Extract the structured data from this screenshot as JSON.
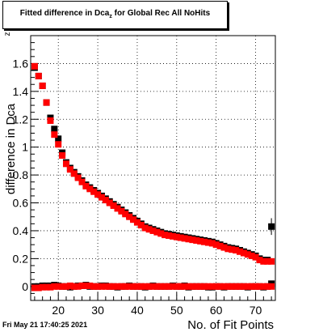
{
  "title": {
    "prefix": "Fitted difference in Dca",
    "subscript": "z",
    "suffix": " for Global Rec All NoHits"
  },
  "timestamp": "Fri May 21 17:40:25 2021",
  "chart_data": {
    "type": "scatter",
    "xlabel": "No. of Fit Points",
    "ylabel": "difference in Dca",
    "ylabel_subscript": "z",
    "xlim": [
      13,
      75
    ],
    "ylim": [
      -0.1,
      1.8
    ],
    "xticks": [
      20,
      30,
      40,
      50,
      60,
      70
    ],
    "yticks": [
      0,
      0.2,
      0.4,
      0.6,
      0.8,
      1,
      1.2,
      1.4,
      1.6
    ],
    "ytick_labels": [
      "0",
      "0.2",
      "0.4",
      "0.6",
      "0.8",
      "1",
      "1.2",
      "1.4",
      "1.6"
    ],
    "grid": true,
    "colors": {
      "black": "#000000",
      "red": "#ff0000"
    },
    "x": [
      14,
      15,
      16,
      17,
      18,
      19,
      20,
      21,
      22,
      23,
      24,
      25,
      26,
      27,
      28,
      29,
      30,
      31,
      32,
      33,
      34,
      35,
      36,
      37,
      38,
      39,
      40,
      41,
      42,
      43,
      44,
      45,
      46,
      47,
      48,
      49,
      50,
      51,
      52,
      53,
      54,
      55,
      56,
      57,
      58,
      59,
      60,
      61,
      62,
      63,
      64,
      65,
      66,
      67,
      68,
      69,
      70,
      71,
      72,
      73,
      74
    ],
    "series": [
      {
        "color": "black",
        "values": [
          1.57,
          1.51,
          1.44,
          1.32,
          1.21,
          1.13,
          1.06,
          0.96,
          0.89,
          0.85,
          0.82,
          0.79,
          0.76,
          0.73,
          0.71,
          0.69,
          0.67,
          0.65,
          0.63,
          0.61,
          0.59,
          0.57,
          0.55,
          0.53,
          0.51,
          0.49,
          0.47,
          0.45,
          0.43,
          0.42,
          0.41,
          0.4,
          0.39,
          0.38,
          0.375,
          0.37,
          0.365,
          0.36,
          0.355,
          0.35,
          0.345,
          0.34,
          0.335,
          0.33,
          0.325,
          0.32,
          0.31,
          0.3,
          0.29,
          0.28,
          0.275,
          0.27,
          0.26,
          0.25,
          0.24,
          0.23,
          0.22,
          0.2,
          0.19,
          0.19,
          0.43
        ],
        "errors": [
          0.02,
          0.02,
          0.02,
          0.02,
          0.02,
          0.02,
          0.01,
          0.01,
          0.01,
          0.01,
          0.01,
          0.01,
          0.01,
          0.01,
          0.01,
          0.01,
          0.01,
          0.01,
          0.01,
          0.01,
          0.01,
          0.01,
          0.01,
          0.01,
          0.01,
          0.01,
          0.01,
          0.01,
          0.01,
          0.01,
          0.01,
          0.01,
          0.01,
          0.01,
          0.01,
          0.01,
          0.01,
          0.01,
          0.01,
          0.01,
          0.01,
          0.01,
          0.01,
          0.01,
          0.01,
          0.01,
          0.01,
          0.01,
          0.01,
          0.01,
          0.01,
          0.01,
          0.01,
          0.01,
          0.01,
          0.01,
          0.01,
          0.01,
          0.02,
          0.02,
          0.06
        ]
      },
      {
        "color": "red",
        "values": [
          1.58,
          1.51,
          1.44,
          1.32,
          1.19,
          1.09,
          1.02,
          0.94,
          0.88,
          0.84,
          0.81,
          0.78,
          0.75,
          0.72,
          0.7,
          0.68,
          0.66,
          0.64,
          0.62,
          0.6,
          0.58,
          0.56,
          0.54,
          0.52,
          0.5,
          0.48,
          0.46,
          0.44,
          0.42,
          0.41,
          0.4,
          0.39,
          0.38,
          0.37,
          0.365,
          0.36,
          0.355,
          0.35,
          0.345,
          0.34,
          0.335,
          0.33,
          0.325,
          0.32,
          0.315,
          0.31,
          0.3,
          0.29,
          0.28,
          0.27,
          0.265,
          0.26,
          0.25,
          0.24,
          0.23,
          0.22,
          0.21,
          0.19,
          0.18,
          0.18,
          0.18
        ],
        "errors": [
          0.02,
          0.02,
          0.02,
          0.02,
          0.02,
          0.02,
          0.01,
          0.01,
          0.01,
          0.01,
          0.01,
          0.01,
          0.01,
          0.01,
          0.01,
          0.01,
          0.01,
          0.01,
          0.01,
          0.01,
          0.01,
          0.01,
          0.01,
          0.01,
          0.01,
          0.01,
          0.01,
          0.01,
          0.01,
          0.01,
          0.01,
          0.01,
          0.01,
          0.01,
          0.01,
          0.01,
          0.01,
          0.01,
          0.01,
          0.01,
          0.01,
          0.01,
          0.01,
          0.01,
          0.01,
          0.01,
          0.01,
          0.01,
          0.01,
          0.01,
          0.01,
          0.01,
          0.01,
          0.01,
          0.01,
          0.01,
          0.01,
          0.01,
          0.01,
          0.01,
          0.01
        ]
      },
      {
        "color": "black",
        "values": [
          0.0,
          0.0,
          0.005,
          0.005,
          0.005,
          0.01,
          0.005,
          0.0,
          0.0,
          -0.005,
          0.0,
          0.005,
          0.005,
          0.01,
          0.0,
          0.0,
          0.0,
          0.005,
          0.005,
          0.0,
          0.0,
          -0.005,
          0.0,
          0.0,
          0.005,
          0.0,
          0.0,
          0.0,
          -0.005,
          0.0,
          0.005,
          0.0,
          0.0,
          0.0,
          0.0,
          0.005,
          0.0,
          0.0,
          0.005,
          -0.005,
          0.0,
          0.0,
          0.0,
          0.0,
          -0.005,
          -0.005,
          0.0,
          0.0,
          -0.005,
          0.0,
          0.0,
          0.0,
          0.0,
          0.0,
          -0.005,
          0.0,
          0.0,
          0.0,
          -0.005,
          0.0,
          0.02
        ],
        "errors": [
          0.01,
          0.01,
          0.01,
          0.01,
          0.01,
          0.01,
          0.005,
          0.005,
          0.005,
          0.005,
          0.005,
          0.005,
          0.005,
          0.005,
          0.005,
          0.005,
          0.005,
          0.005,
          0.005,
          0.005,
          0.005,
          0.005,
          0.005,
          0.005,
          0.005,
          0.005,
          0.005,
          0.005,
          0.005,
          0.005,
          0.005,
          0.005,
          0.005,
          0.005,
          0.005,
          0.005,
          0.005,
          0.005,
          0.005,
          0.005,
          0.005,
          0.005,
          0.005,
          0.005,
          0.005,
          0.005,
          0.005,
          0.005,
          0.005,
          0.005,
          0.005,
          0.005,
          0.005,
          0.005,
          0.005,
          0.005,
          0.005,
          0.005,
          0.01,
          0.01,
          0.02
        ]
      },
      {
        "color": "red",
        "values": [
          -0.01,
          -0.01,
          -0.005,
          -0.005,
          -0.005,
          0.0,
          0.0,
          0.0,
          0.0,
          0.005,
          0.0,
          0.0,
          0.005,
          0.005,
          0.005,
          0.0,
          0.0,
          0.0,
          0.0,
          0.0,
          0.0,
          0.0,
          0.0,
          0.0,
          0.0,
          0.0,
          0.0,
          0.0,
          0.0,
          0.0,
          0.0,
          0.0,
          0.0,
          0.0,
          0.0,
          0.0,
          0.0,
          0.0,
          0.0,
          0.0,
          0.0,
          0.0,
          0.0,
          0.0,
          0.0,
          0.0,
          0.0,
          0.0,
          0.0,
          0.0,
          0.0,
          0.0,
          0.0,
          0.0,
          0.0,
          0.0,
          0.0,
          0.0,
          0.0,
          0.0,
          0.0
        ],
        "errors": [
          0.01,
          0.01,
          0.01,
          0.01,
          0.01,
          0.005,
          0.005,
          0.005,
          0.005,
          0.005,
          0.005,
          0.005,
          0.005,
          0.005,
          0.005,
          0.005,
          0.005,
          0.005,
          0.005,
          0.005,
          0.005,
          0.005,
          0.005,
          0.005,
          0.005,
          0.005,
          0.005,
          0.005,
          0.005,
          0.005,
          0.005,
          0.005,
          0.005,
          0.005,
          0.005,
          0.005,
          0.005,
          0.005,
          0.005,
          0.005,
          0.005,
          0.005,
          0.005,
          0.005,
          0.005,
          0.005,
          0.005,
          0.005,
          0.005,
          0.005,
          0.005,
          0.005,
          0.005,
          0.005,
          0.005,
          0.005,
          0.005,
          0.005,
          0.005,
          0.005,
          0.005
        ]
      }
    ]
  }
}
